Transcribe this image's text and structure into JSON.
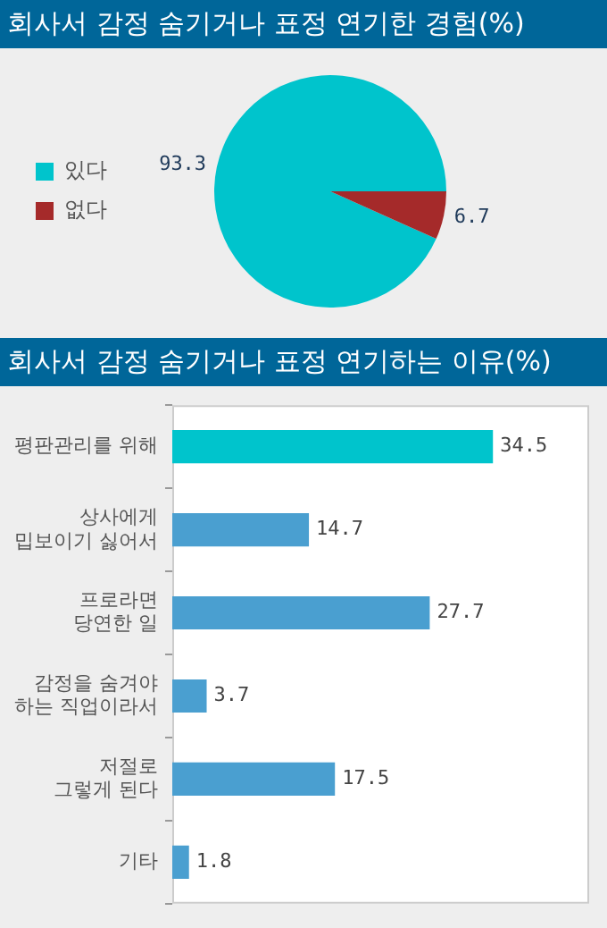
{
  "chart_data": [
    {
      "type": "pie",
      "title": "회사서 감정 숨기거나 표정 연기한 경험(%)",
      "categories": [
        "있다",
        "없다"
      ],
      "values": [
        93.3,
        6.7
      ],
      "colors": [
        "#00c4cc",
        "#a52a2a"
      ],
      "legend": "left",
      "data_labels": true
    },
    {
      "type": "bar",
      "title": "회사서 감정 숨기거나 표정 연기하는 이유(%)",
      "orientation": "horizontal",
      "categories": [
        "평판관리를 위해",
        "상사에게 밉보이기 싫어서",
        "프로라면 당연한 일",
        "감정을 숨겨야 하는 직업이라서",
        "저절로 그렇게 된다",
        "기타"
      ],
      "values": [
        34.5,
        14.7,
        27.7,
        3.7,
        17.5,
        1.8
      ],
      "colors": [
        "#00c4cc",
        "#4a9fd0",
        "#4a9fd0",
        "#4a9fd0",
        "#4a9fd0",
        "#4a9fd0"
      ],
      "data_labels": true
    }
  ]
}
